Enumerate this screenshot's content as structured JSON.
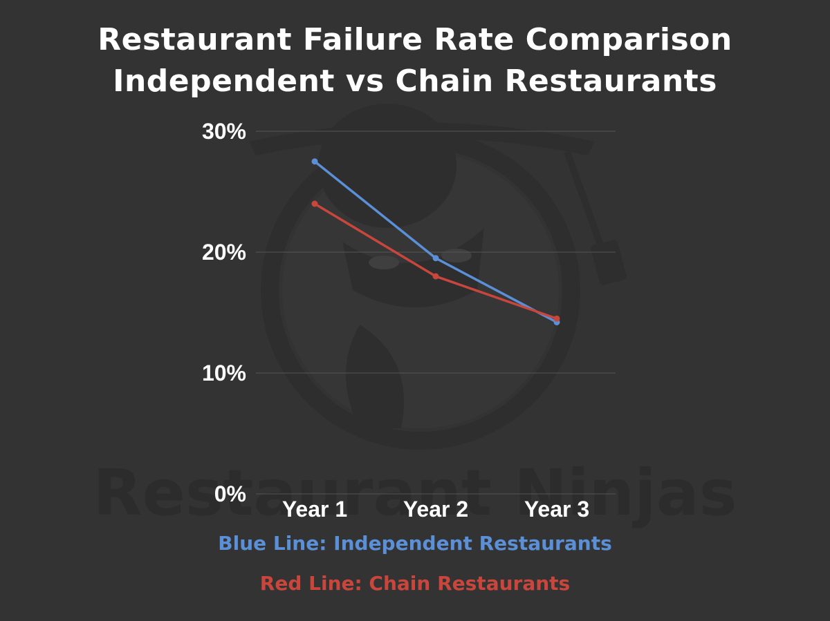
{
  "title_lines": [
    "Restaurant Failure Rate Comparison",
    "Independent vs Chain Restaurants"
  ],
  "watermark_text": "Restaurant Ninjas",
  "legend": {
    "blue": "Blue Line: Independent Restaurants",
    "red": "Red Line: Chain Restaurants"
  },
  "colors": {
    "background": "#333333",
    "blue": "#5b8fd6",
    "red": "#c9463d",
    "grid": "#555555",
    "text": "#ffffff"
  },
  "chart_data": {
    "type": "line",
    "categories": [
      "Year 1",
      "Year 2",
      "Year 3"
    ],
    "series": [
      {
        "name": "Independent Restaurants",
        "color": "#5b8fd6",
        "values": [
          27.5,
          19.5,
          14.2
        ]
      },
      {
        "name": "Chain Restaurants",
        "color": "#c9463d",
        "values": [
          24.0,
          18.0,
          14.5
        ]
      }
    ],
    "yticks": [
      "0%",
      "10%",
      "20%",
      "30%"
    ],
    "ytick_values": [
      0,
      10,
      20,
      30
    ],
    "ylim": [
      0,
      30
    ],
    "grid": true,
    "title": "Restaurant Failure Rate Comparison Independent vs Chain Restaurants"
  }
}
